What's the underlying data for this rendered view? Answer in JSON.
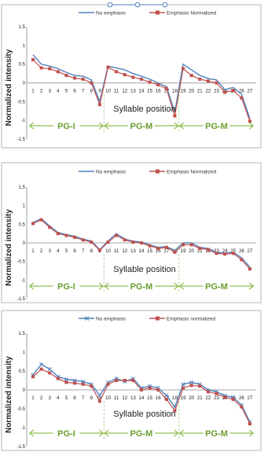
{
  "chart_data": [
    {
      "type": "line",
      "xlabel": "Syllable position",
      "ylabel": "Normalized intensity",
      "ylim": [
        -1.5,
        1.5
      ],
      "yticks": [
        "1.5",
        "1",
        "0.5",
        "0",
        "-0.5",
        "-1",
        "-1.5"
      ],
      "categories": [
        "1",
        "2",
        "3",
        "4",
        "5",
        "6",
        "7",
        "8",
        "9",
        "10",
        "11",
        "12",
        "13",
        "14",
        "15",
        "16",
        "17",
        "18",
        "19",
        "20",
        "21",
        "22",
        "23",
        "24",
        "25",
        "26",
        "27"
      ],
      "legend": "top",
      "series": [
        {
          "name": "No emphasis",
          "color": "#4f81bd",
          "marker": "none",
          "values": [
            0.75,
            0.5,
            0.45,
            0.38,
            0.28,
            0.2,
            0.18,
            0.08,
            -0.5,
            0.45,
            0.4,
            0.35,
            0.25,
            0.18,
            0.1,
            0.0,
            -0.1,
            -0.78,
            0.5,
            0.35,
            0.2,
            0.12,
            0.08,
            -0.18,
            -0.12,
            -0.3,
            -0.95
          ]
        },
        {
          "name": "Emphasis Normalized",
          "color": "#c0504d",
          "marker": "square",
          "values": [
            0.62,
            0.4,
            0.38,
            0.3,
            0.2,
            0.13,
            0.1,
            0.0,
            -0.58,
            0.42,
            0.3,
            0.22,
            0.15,
            0.1,
            0.02,
            -0.05,
            -0.15,
            -0.88,
            0.38,
            0.2,
            0.1,
            0.05,
            0.0,
            -0.25,
            -0.2,
            -0.4,
            -1.02
          ]
        }
      ],
      "regions": [
        {
          "label": "PG-I",
          "from": 1,
          "to": 9
        },
        {
          "label": "PG-M",
          "from": 10,
          "to": 18
        },
        {
          "label": "PG-M",
          "from": 19,
          "to": 27
        }
      ]
    },
    {
      "type": "line",
      "xlabel": "Syllable position",
      "ylabel": "Normalized intensity",
      "ylim": [
        -1.5,
        1.5
      ],
      "yticks": [
        "1.5",
        "1",
        "0.5",
        "0",
        "-0.5",
        "-1",
        "-1.5"
      ],
      "categories": [
        "1",
        "2",
        "3",
        "4",
        "5",
        "6",
        "7",
        "8",
        "9",
        "10",
        "11",
        "12",
        "13",
        "14",
        "15",
        "16",
        "17",
        "18",
        "19",
        "20",
        "21",
        "22",
        "23",
        "24",
        "25",
        "26",
        "27"
      ],
      "legend": "top",
      "series": [
        {
          "name": "No emphasis",
          "color": "#4f81bd",
          "marker": "none",
          "values": [
            0.55,
            0.65,
            0.45,
            0.28,
            0.22,
            0.18,
            0.1,
            0.05,
            -0.18,
            0.05,
            0.25,
            0.1,
            0.05,
            0.02,
            -0.05,
            -0.12,
            -0.1,
            -0.2,
            0.0,
            0.0,
            -0.12,
            -0.15,
            -0.25,
            -0.28,
            -0.25,
            -0.4,
            -0.65
          ]
        },
        {
          "name": "Emphasis Normalized",
          "color": "#c0504d",
          "marker": "square",
          "values": [
            0.52,
            0.62,
            0.42,
            0.25,
            0.2,
            0.15,
            0.08,
            0.02,
            -0.2,
            0.02,
            0.2,
            0.08,
            0.02,
            0.0,
            -0.08,
            -0.15,
            -0.12,
            -0.25,
            -0.05,
            -0.05,
            -0.15,
            -0.18,
            -0.28,
            -0.3,
            -0.28,
            -0.45,
            -0.7
          ]
        }
      ],
      "regions": [
        {
          "label": "PG-I",
          "from": 1,
          "to": 9
        },
        {
          "label": "PG-M",
          "from": 10,
          "to": 18
        },
        {
          "label": "PG-M",
          "from": 19,
          "to": 27
        }
      ]
    },
    {
      "type": "line",
      "xlabel": "Syllable position",
      "ylabel": "Normalized intensity",
      "ylim": [
        -1.5,
        1.5
      ],
      "yticks": [
        "1.5",
        "1",
        "0.5",
        "0",
        "-0.5",
        "-1",
        "-1.5"
      ],
      "categories": [
        "1",
        "2",
        "3",
        "4",
        "5",
        "6",
        "7",
        "8",
        "9",
        "10",
        "11",
        "12",
        "13",
        "14",
        "15",
        "16",
        "17",
        "18",
        "19",
        "20",
        "21",
        "22",
        "23",
        "24",
        "25",
        "26",
        "27"
      ],
      "legend": "top",
      "series": [
        {
          "name": "No emphasis",
          "color": "#4f81bd",
          "marker": "x",
          "values": [
            0.4,
            0.68,
            0.55,
            0.35,
            0.28,
            0.25,
            0.22,
            0.15,
            -0.15,
            0.2,
            0.3,
            0.22,
            0.3,
            0.05,
            0.1,
            0.05,
            -0.15,
            -0.45,
            0.15,
            0.2,
            0.15,
            0.0,
            -0.05,
            -0.15,
            -0.2,
            -0.4,
            -0.85
          ]
        },
        {
          "name": "Emphasis normalized",
          "color": "#c0504d",
          "marker": "square",
          "values": [
            0.35,
            0.55,
            0.45,
            0.3,
            0.2,
            0.18,
            0.15,
            0.1,
            -0.3,
            0.15,
            0.25,
            0.25,
            0.25,
            0.0,
            0.05,
            0.0,
            -0.25,
            -0.55,
            0.05,
            0.12,
            0.1,
            -0.05,
            -0.1,
            -0.2,
            -0.25,
            -0.45,
            -0.9
          ]
        }
      ],
      "regions": [
        {
          "label": "PG-I",
          "from": 1,
          "to": 9
        },
        {
          "label": "PG-M",
          "from": 10,
          "to": 18
        },
        {
          "label": "PG-M",
          "from": 19,
          "to": 27
        }
      ]
    }
  ]
}
